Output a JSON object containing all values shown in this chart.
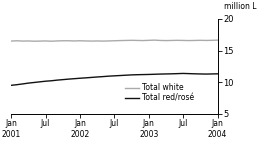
{
  "ylabel_right": "million L",
  "ylim": [
    5,
    20
  ],
  "yticks": [
    5,
    10,
    15,
    20
  ],
  "x_tick_labels": [
    "Jan\n2001",
    "Jul",
    "Jan\n2002",
    "Jul",
    "Jan\n2003",
    "Jul",
    "Jan\n2004"
  ],
  "x_tick_positions": [
    0,
    6,
    12,
    18,
    24,
    30,
    36
  ],
  "total_white": [
    16.5,
    16.55,
    16.5,
    16.52,
    16.48,
    16.5,
    16.52,
    16.48,
    16.52,
    16.55,
    16.55,
    16.52,
    16.55,
    16.52,
    16.5,
    16.52,
    16.5,
    16.52,
    16.55,
    16.58,
    16.6,
    16.62,
    16.6,
    16.58,
    16.62,
    16.65,
    16.6,
    16.58,
    16.6,
    16.62,
    16.6,
    16.58,
    16.6,
    16.62,
    16.6,
    16.62,
    16.65
  ],
  "total_red": [
    9.5,
    9.6,
    9.72,
    9.85,
    9.95,
    10.05,
    10.15,
    10.22,
    10.32,
    10.4,
    10.48,
    10.55,
    10.62,
    10.68,
    10.75,
    10.82,
    10.88,
    10.95,
    11.0,
    11.05,
    11.1,
    11.15,
    11.18,
    11.2,
    11.22,
    11.25,
    11.28,
    11.3,
    11.32,
    11.35,
    11.38,
    11.35,
    11.32,
    11.3,
    11.28,
    11.3,
    11.32
  ],
  "white_color": "#aaaaaa",
  "red_color": "#111111",
  "background_color": "#ffffff",
  "legend_labels": [
    "Total white",
    "Total red/rosé"
  ],
  "figsize": [
    2.79,
    1.58
  ],
  "dpi": 100
}
